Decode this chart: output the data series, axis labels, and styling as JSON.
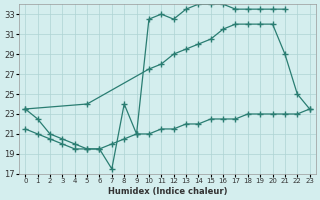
{
  "xlabel": "Humidex (Indice chaleur)",
  "bg_color": "#d4eeee",
  "grid_color": "#aed4d4",
  "line_color": "#2a7d72",
  "xlim": [
    -0.5,
    23.5
  ],
  "ylim": [
    17,
    34
  ],
  "yticks": [
    17,
    19,
    21,
    23,
    25,
    27,
    29,
    31,
    33
  ],
  "xticks": [
    0,
    1,
    2,
    3,
    4,
    5,
    6,
    7,
    8,
    9,
    10,
    11,
    12,
    13,
    14,
    15,
    16,
    17,
    18,
    19,
    20,
    21,
    22,
    23
  ],
  "s1_x": [
    0,
    1,
    2,
    3,
    4,
    5,
    6,
    7,
    8,
    9,
    10,
    11,
    12,
    13,
    14,
    15,
    16,
    17,
    18,
    19,
    20,
    21
  ],
  "s1_y": [
    23.5,
    22.5,
    21.0,
    20.5,
    20.0,
    19.5,
    19.5,
    17.5,
    24.0,
    21.0,
    32.5,
    33.0,
    32.5,
    33.5,
    34.0,
    34.0,
    34.0,
    33.5,
    33.5,
    33.5,
    33.5,
    33.5
  ],
  "s2_x": [
    0,
    5,
    10,
    11,
    12,
    13,
    14,
    15,
    16,
    17,
    18,
    19,
    20,
    21,
    22,
    23
  ],
  "s2_y": [
    23.5,
    24.0,
    27.5,
    28.0,
    29.0,
    29.5,
    30.0,
    30.5,
    31.5,
    32.0,
    32.0,
    32.0,
    32.0,
    29.0,
    25.0,
    23.5
  ],
  "s3_x": [
    0,
    1,
    2,
    3,
    4,
    5,
    6,
    7,
    8,
    9,
    10,
    11,
    12,
    13,
    14,
    15,
    16,
    17,
    18,
    19,
    20,
    21,
    22,
    23
  ],
  "s3_y": [
    21.5,
    21.0,
    20.5,
    20.0,
    19.5,
    19.5,
    19.5,
    20.0,
    20.5,
    21.0,
    21.0,
    21.5,
    21.5,
    22.0,
    22.0,
    22.5,
    22.5,
    22.5,
    23.0,
    23.0,
    23.0,
    23.0,
    23.0,
    23.5
  ]
}
